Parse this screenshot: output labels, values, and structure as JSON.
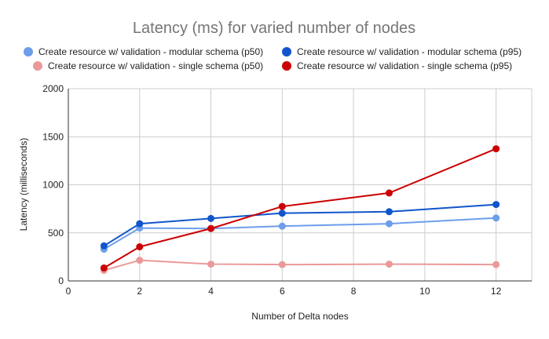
{
  "chart_data": {
    "type": "line",
    "title": "Latency (ms) for varied number of nodes",
    "xlabel": "Number of Delta nodes",
    "ylabel": "Latency (milliseconds)",
    "xlim": [
      0,
      13
    ],
    "ylim": [
      0,
      2000
    ],
    "x_ticks": [
      0,
      2,
      4,
      6,
      8,
      10,
      12
    ],
    "y_ticks": [
      0,
      500,
      1000,
      1500,
      2000
    ],
    "grid": true,
    "legend_position": "top",
    "x": [
      1,
      2,
      4,
      6,
      9,
      12
    ],
    "series": [
      {
        "name": "Create resource w/ validation - modular schema (p50)",
        "color": "#6d9eeb",
        "values": [
          330,
          550,
          545,
          570,
          595,
          655
        ]
      },
      {
        "name": "Create resource w/ validation - modular schema (p95)",
        "color": "#1155cc",
        "values": [
          365,
          595,
          650,
          705,
          720,
          795
        ]
      },
      {
        "name": "Create resource w/ validation - single schema (p50)",
        "color": "#ea9999",
        "values": [
          110,
          215,
          175,
          170,
          175,
          170
        ]
      },
      {
        "name": "Create resource w/ validation - single schema (p95)",
        "color": "#cc0000",
        "values": [
          135,
          355,
          545,
          775,
          915,
          1375
        ]
      }
    ]
  }
}
